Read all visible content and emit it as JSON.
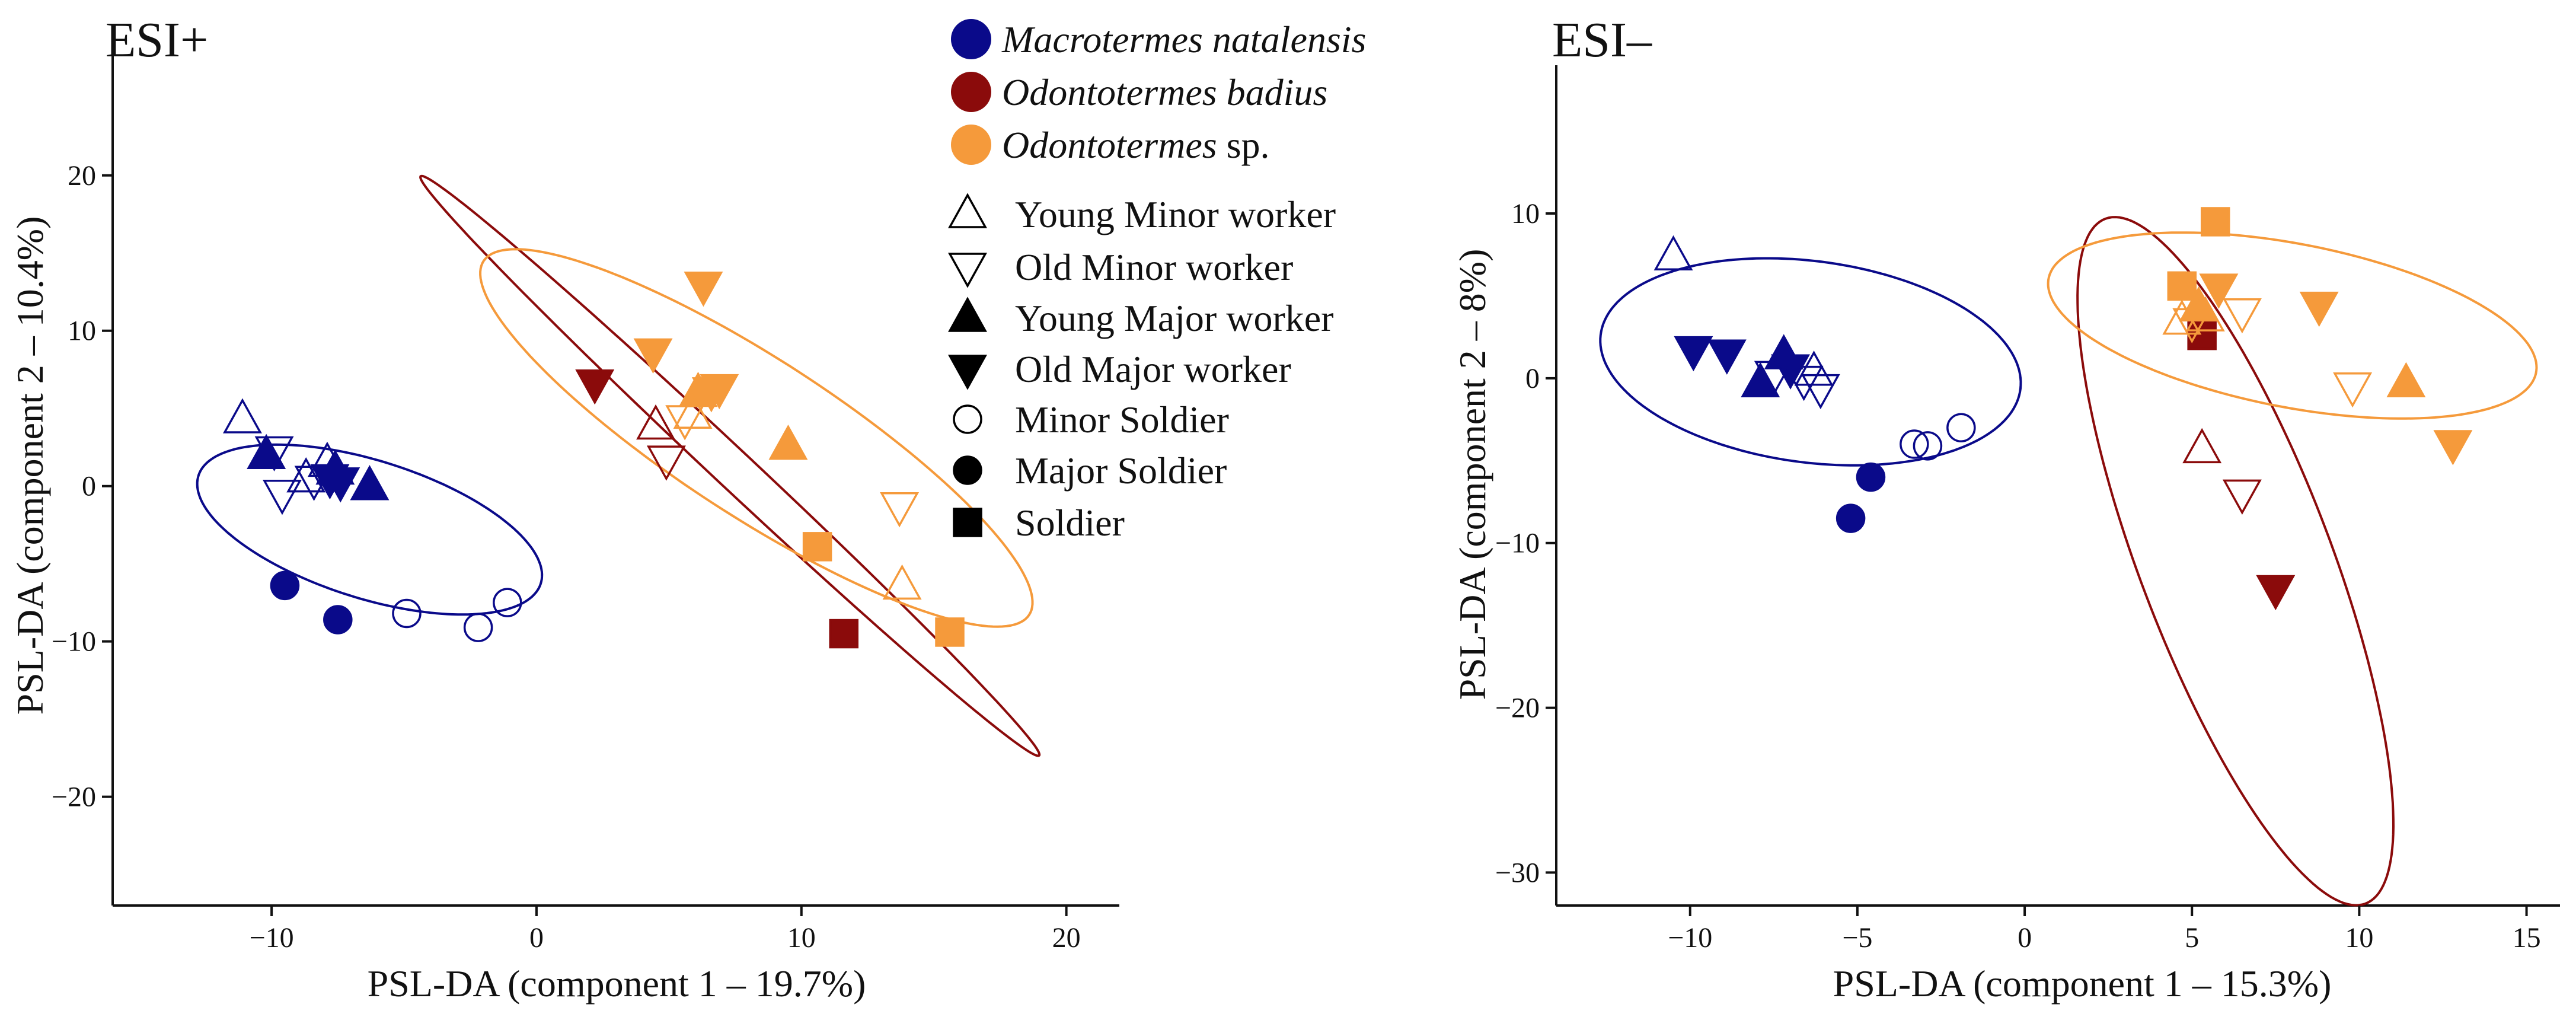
{
  "chart_data": [
    {
      "type": "scatter",
      "title": "ESI+",
      "xlabel": "PSL-DA (component 1 – 19.7%)",
      "ylabel": "PSL-DA (component 2 – 10.4%)",
      "xlim": [
        -16,
        22
      ],
      "ylim": [
        -27,
        29
      ],
      "xticks": [
        -10,
        0,
        10,
        20
      ],
      "yticks": [
        -20,
        -10,
        0,
        10,
        20
      ],
      "xtick_labels": [
        "−10",
        "0",
        "10",
        "20"
      ],
      "ytick_labels": [
        "−20",
        "−10",
        "0",
        "10",
        "20"
      ],
      "grid": false,
      "points": [
        {
          "x": -11.1,
          "y": 4.3,
          "species": "mn",
          "caste": "young-minor"
        },
        {
          "x": -10.2,
          "y": 2.0,
          "species": "mn",
          "caste": "young-major"
        },
        {
          "x": -9.9,
          "y": 2.3,
          "species": "mn",
          "caste": "old-minor"
        },
        {
          "x": -9.6,
          "y": -0.5,
          "species": "mn",
          "caste": "old-minor"
        },
        {
          "x": -8.7,
          "y": 0.5,
          "species": "mn",
          "caste": "young-minor"
        },
        {
          "x": -8.4,
          "y": 0.4,
          "species": "mn",
          "caste": "old-minor"
        },
        {
          "x": -7.9,
          "y": 1.5,
          "species": "mn",
          "caste": "young-minor"
        },
        {
          "x": -7.8,
          "y": 0.5,
          "species": "mn",
          "caste": "old-major"
        },
        {
          "x": -7.6,
          "y": 1.0,
          "species": "mn",
          "caste": "young-major"
        },
        {
          "x": -7.4,
          "y": 0.3,
          "species": "mn",
          "caste": "old-major"
        },
        {
          "x": -6.3,
          "y": 0.0,
          "species": "mn",
          "caste": "young-major"
        },
        {
          "x": -9.5,
          "y": -6.4,
          "species": "mn",
          "caste": "major-soldier"
        },
        {
          "x": -7.5,
          "y": -8.6,
          "species": "mn",
          "caste": "major-soldier"
        },
        {
          "x": -4.9,
          "y": -8.2,
          "species": "mn",
          "caste": "minor-soldier"
        },
        {
          "x": -2.2,
          "y": -9.1,
          "species": "mn",
          "caste": "minor-soldier"
        },
        {
          "x": -1.1,
          "y": -7.5,
          "species": "mn",
          "caste": "minor-soldier"
        },
        {
          "x": 2.2,
          "y": 6.6,
          "species": "ob",
          "caste": "old-major"
        },
        {
          "x": 4.5,
          "y": 3.9,
          "species": "ob",
          "caste": "young-minor"
        },
        {
          "x": 4.9,
          "y": 1.7,
          "species": "ob",
          "caste": "old-minor"
        },
        {
          "x": 11.6,
          "y": -9.5,
          "species": "ob",
          "caste": "soldier"
        },
        {
          "x": 4.4,
          "y": 8.6,
          "species": "osp",
          "caste": "old-major"
        },
        {
          "x": 6.1,
          "y": 6.0,
          "species": "osp",
          "caste": "young-major"
        },
        {
          "x": 6.3,
          "y": 12.9,
          "species": "osp",
          "caste": "old-major"
        },
        {
          "x": 6.6,
          "y": 6.1,
          "species": "osp",
          "caste": "old-major"
        },
        {
          "x": 6.9,
          "y": 6.3,
          "species": "osp",
          "caste": "old-major"
        },
        {
          "x": 5.6,
          "y": 4.3,
          "species": "osp",
          "caste": "old-minor"
        },
        {
          "x": 5.9,
          "y": 4.6,
          "species": "osp",
          "caste": "young-minor"
        },
        {
          "x": 9.5,
          "y": 2.6,
          "species": "osp",
          "caste": "young-major"
        },
        {
          "x": 10.6,
          "y": -3.9,
          "species": "osp",
          "caste": "soldier"
        },
        {
          "x": 13.7,
          "y": -1.3,
          "species": "osp",
          "caste": "old-minor"
        },
        {
          "x": 13.8,
          "y": -6.4,
          "species": "osp",
          "caste": "young-minor"
        },
        {
          "x": 15.6,
          "y": -9.4,
          "species": "osp",
          "caste": "soldier"
        }
      ],
      "ellipses": [
        {
          "species": "mn",
          "cx": -6.3,
          "cy": -2.8,
          "rx": 7.5,
          "ry": 4.0,
          "angle_deg": -36
        },
        {
          "species": "ob",
          "cx": 7.3,
          "cy": 1.3,
          "rx": 22.0,
          "ry": 0.9,
          "angle_deg": -58
        },
        {
          "species": "osp",
          "cx": 8.3,
          "cy": 3.1,
          "rx": 15.5,
          "ry": 4.0,
          "angle_deg": -50
        }
      ]
    },
    {
      "type": "scatter",
      "title": "ESI–",
      "xlabel": "PSL-DA (component 1 – 15.3%)",
      "ylabel": "PSL-DA (component 2 – 8%)",
      "xlim": [
        -14,
        16
      ],
      "ylim": [
        -32,
        19
      ],
      "xticks": [
        -10,
        -5,
        0,
        5,
        10,
        15
      ],
      "yticks": [
        -30,
        -20,
        -10,
        0,
        10
      ],
      "xtick_labels": [
        "−10",
        "−5",
        "0",
        "5",
        "10",
        "15"
      ],
      "ytick_labels": [
        "−30",
        "−20",
        "−10",
        "0",
        "10"
      ],
      "grid": false,
      "points": [
        {
          "x": -10.5,
          "y": 7.4,
          "species": "mn",
          "caste": "young-minor"
        },
        {
          "x": -9.9,
          "y": 1.7,
          "species": "mn",
          "caste": "old-major"
        },
        {
          "x": -8.9,
          "y": 1.5,
          "species": "mn",
          "caste": "old-major"
        },
        {
          "x": -7.9,
          "y": -0.3,
          "species": "mn",
          "caste": "young-major"
        },
        {
          "x": -7.5,
          "y": 0.2,
          "species": "mn",
          "caste": "old-minor"
        },
        {
          "x": -7.2,
          "y": 1.4,
          "species": "mn",
          "caste": "young-major"
        },
        {
          "x": -7.0,
          "y": 0.6,
          "species": "mn",
          "caste": "old-major"
        },
        {
          "x": -6.6,
          "y": -0.1,
          "species": "mn",
          "caste": "old-minor"
        },
        {
          "x": -6.3,
          "y": 0.4,
          "species": "mn",
          "caste": "young-minor"
        },
        {
          "x": -6.1,
          "y": -0.6,
          "species": "mn",
          "caste": "old-minor"
        },
        {
          "x": -5.2,
          "y": -8.5,
          "species": "mn",
          "caste": "major-soldier"
        },
        {
          "x": -4.6,
          "y": -6.0,
          "species": "mn",
          "caste": "major-soldier"
        },
        {
          "x": -3.3,
          "y": -4.0,
          "species": "mn",
          "caste": "minor-soldier"
        },
        {
          "x": -2.9,
          "y": -4.1,
          "species": "mn",
          "caste": "minor-soldier"
        },
        {
          "x": -1.9,
          "y": -3.0,
          "species": "mn",
          "caste": "minor-soldier"
        },
        {
          "x": 5.3,
          "y": 2.6,
          "species": "ob",
          "caste": "soldier"
        },
        {
          "x": 5.3,
          "y": -4.3,
          "species": "ob",
          "caste": "young-minor"
        },
        {
          "x": 6.5,
          "y": -7.0,
          "species": "ob",
          "caste": "old-minor"
        },
        {
          "x": 7.5,
          "y": -12.8,
          "species": "ob",
          "caste": "old-major"
        },
        {
          "x": 5.7,
          "y": 9.5,
          "species": "osp",
          "caste": "soldier"
        },
        {
          "x": 4.7,
          "y": 5.6,
          "species": "osp",
          "caste": "soldier"
        },
        {
          "x": 4.7,
          "y": 3.5,
          "species": "osp",
          "caste": "young-minor"
        },
        {
          "x": 5.0,
          "y": 3.4,
          "species": "osp",
          "caste": "old-minor"
        },
        {
          "x": 5.2,
          "y": 4.3,
          "species": "osp",
          "caste": "young-major"
        },
        {
          "x": 5.4,
          "y": 3.7,
          "species": "osp",
          "caste": "young-minor"
        },
        {
          "x": 5.8,
          "y": 5.5,
          "species": "osp",
          "caste": "old-major"
        },
        {
          "x": 6.5,
          "y": 4.0,
          "species": "osp",
          "caste": "old-minor"
        },
        {
          "x": 8.8,
          "y": 4.4,
          "species": "osp",
          "caste": "old-major"
        },
        {
          "x": 9.8,
          "y": -0.5,
          "species": "osp",
          "caste": "old-minor"
        },
        {
          "x": 11.4,
          "y": -0.3,
          "species": "osp",
          "caste": "young-major"
        },
        {
          "x": 12.8,
          "y": -4.0,
          "species": "osp",
          "caste": "old-major"
        }
      ],
      "ellipses": [
        {
          "species": "mn",
          "cx": -6.4,
          "cy": 1.0,
          "rx": 6.9,
          "ry": 5.6,
          "angle_deg": -45
        },
        {
          "species": "ob",
          "cx": 6.3,
          "cy": -11.1,
          "rx": 21.2,
          "ry": 3.0,
          "angle_deg": -80
        },
        {
          "species": "osp",
          "cx": 8.0,
          "cy": 3.2,
          "rx": 8.0,
          "ry": 4.6,
          "angle_deg": -30
        }
      ]
    }
  ],
  "legend": {
    "species": [
      {
        "key": "mn",
        "italic": "Macrotermes natalensis",
        "suffix": "",
        "color": "#0a0a8a"
      },
      {
        "key": "ob",
        "italic": "Odontotermes badius",
        "suffix": "",
        "color": "#8b0b0b"
      },
      {
        "key": "osp",
        "italic": "Odontotermes",
        "suffix": " sp.",
        "color": "#f59a3b"
      }
    ],
    "castes": [
      {
        "key": "young-minor",
        "label": "Young Minor worker"
      },
      {
        "key": "old-minor",
        "label": "Old Minor worker"
      },
      {
        "key": "young-major",
        "label": "Young Major worker"
      },
      {
        "key": "old-major",
        "label": "Old Major worker"
      },
      {
        "key": "minor-soldier",
        "label": "Minor Soldier"
      },
      {
        "key": "major-soldier",
        "label": "Major Soldier"
      },
      {
        "key": "soldier",
        "label": "Soldier"
      }
    ]
  }
}
